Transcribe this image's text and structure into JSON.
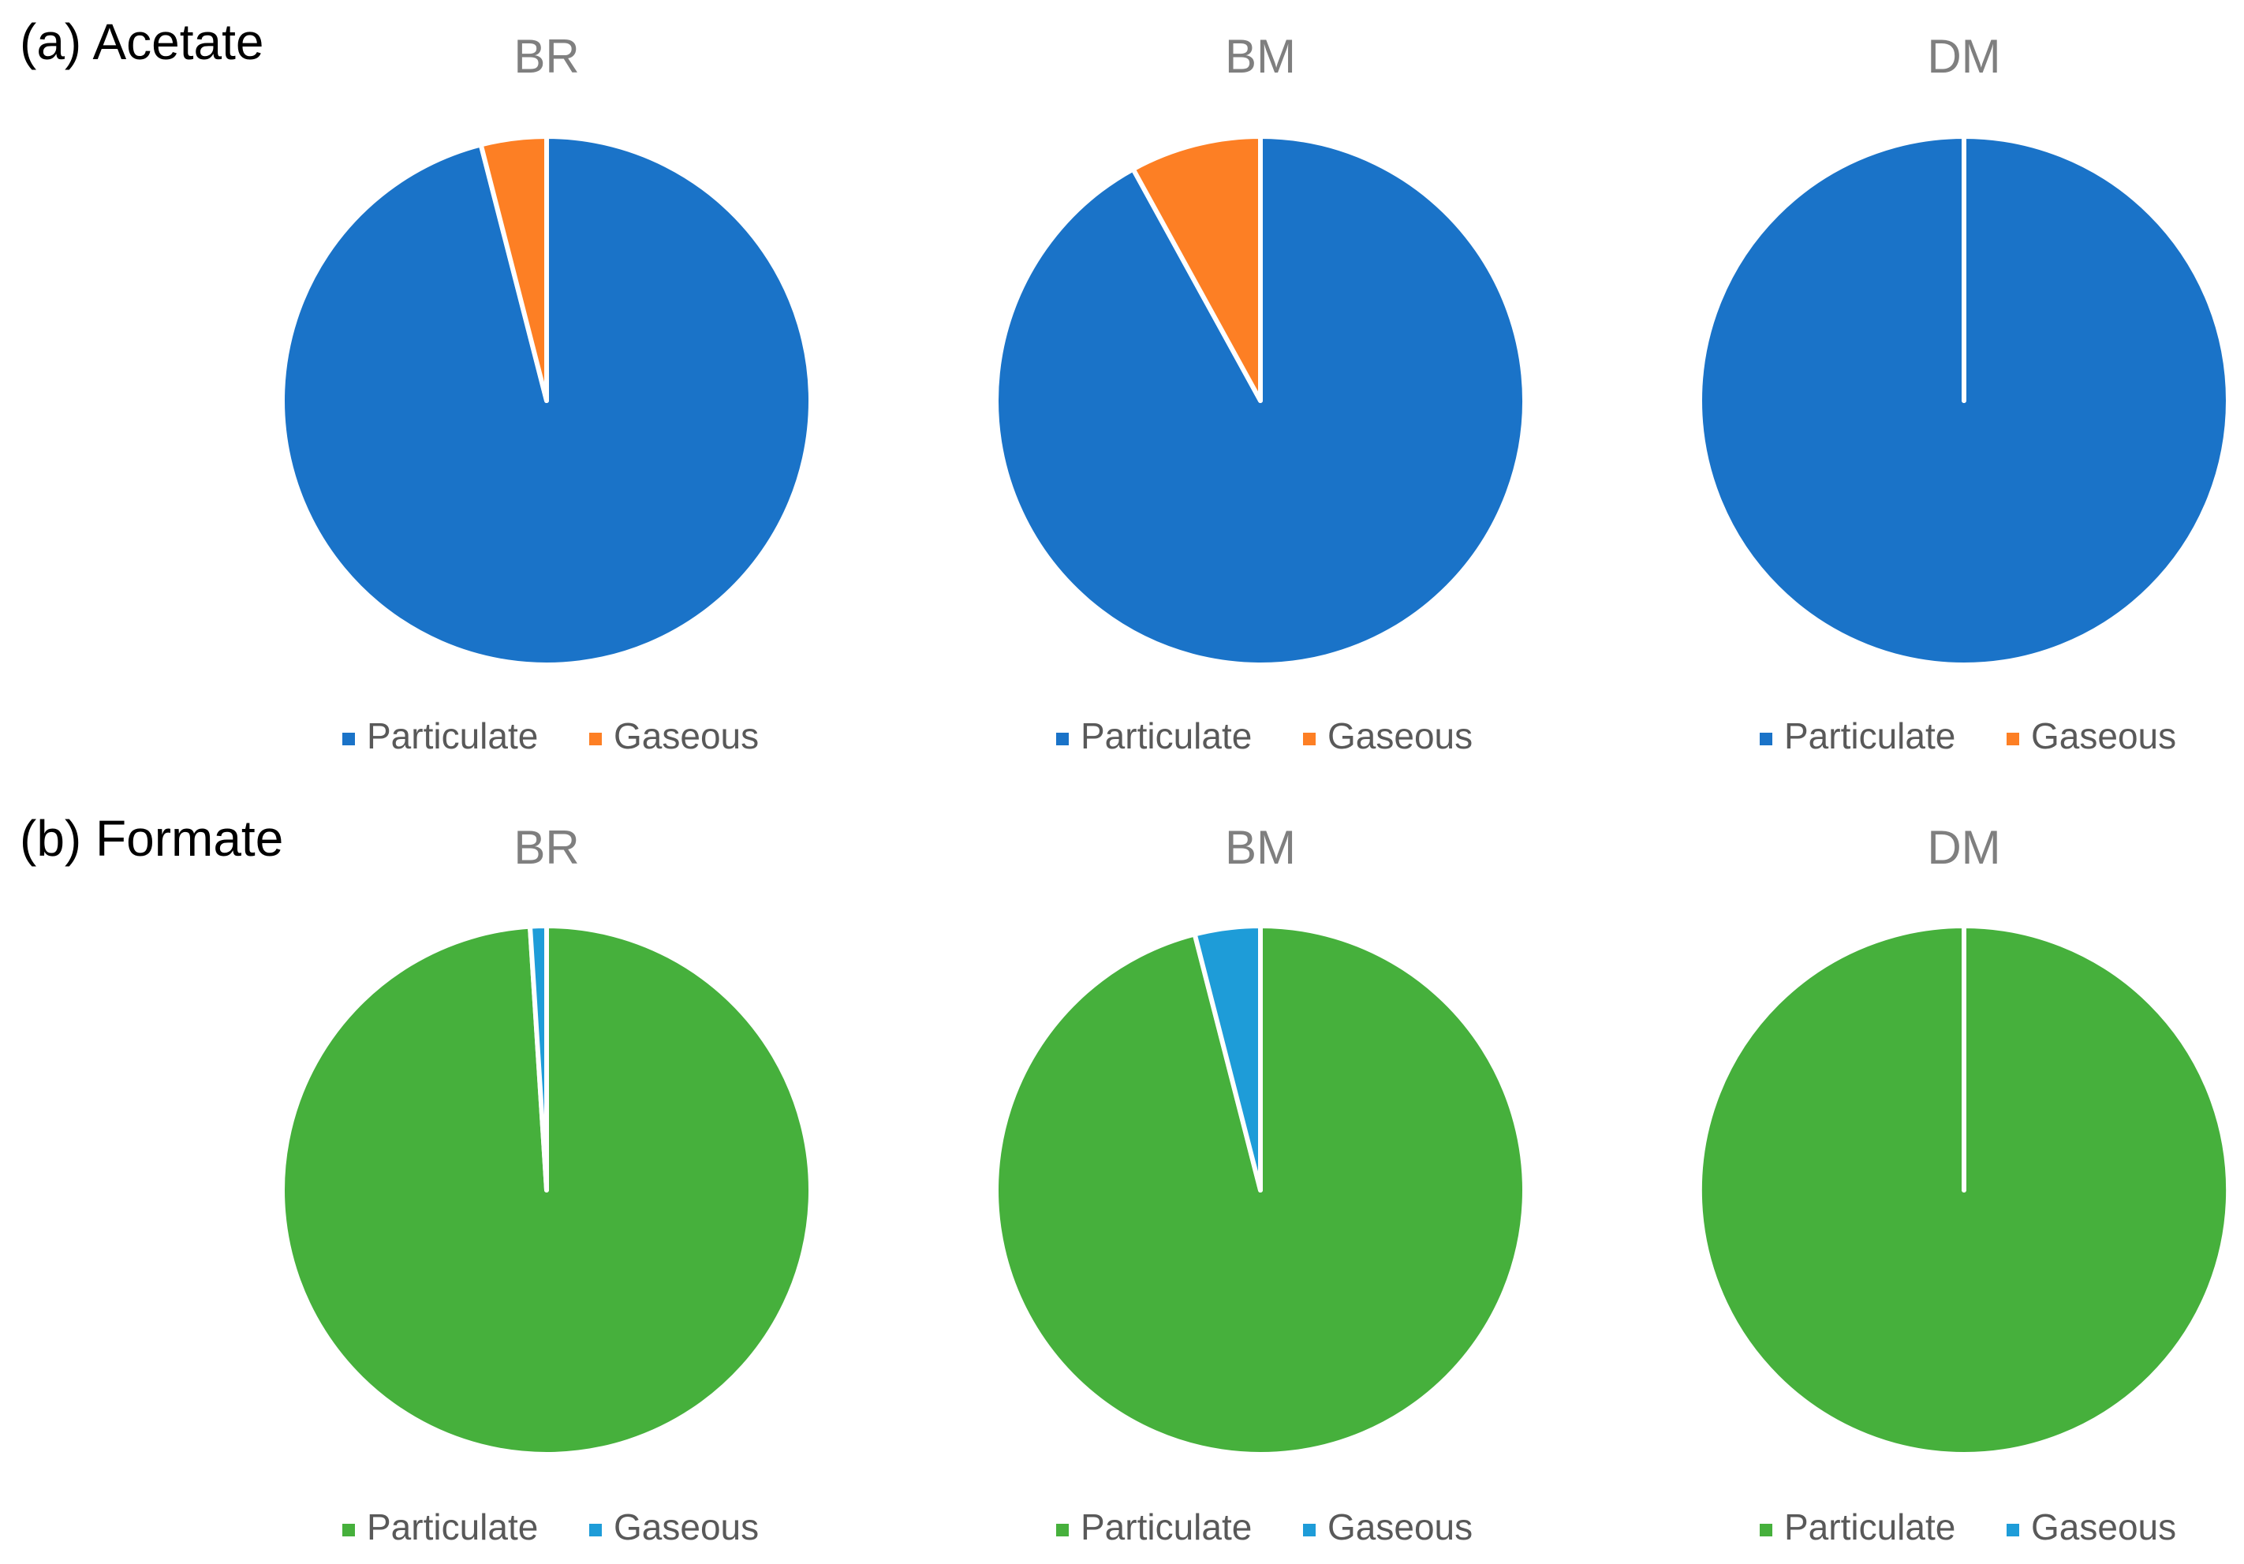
{
  "panel_labels": [
    "(a) Acetate",
    "(b) Formate"
  ],
  "chart_data": [
    {
      "type": "pie",
      "title": "BR",
      "categories": [
        "Particulate",
        "Gaseous"
      ],
      "values": [
        96,
        4
      ],
      "colors": [
        "#1a73c8",
        "#fd7f24"
      ]
    },
    {
      "type": "pie",
      "title": "BM",
      "categories": [
        "Particulate",
        "Gaseous"
      ],
      "values": [
        92,
        8
      ],
      "colors": [
        "#1a73c8",
        "#fd7f24"
      ]
    },
    {
      "type": "pie",
      "title": "DM",
      "categories": [
        "Particulate",
        "Gaseous"
      ],
      "values": [
        100,
        0
      ],
      "colors": [
        "#1a73c8",
        "#fd7f24"
      ]
    },
    {
      "type": "pie",
      "title": "BR",
      "categories": [
        "Particulate",
        "Gaseous"
      ],
      "values": [
        99,
        1
      ],
      "colors": [
        "#46b03c",
        "#1e9cd8"
      ]
    },
    {
      "type": "pie",
      "title": "BM",
      "categories": [
        "Particulate",
        "Gaseous"
      ],
      "values": [
        96,
        4
      ],
      "colors": [
        "#46b03c",
        "#1e9cd8"
      ]
    },
    {
      "type": "pie",
      "title": "DM",
      "categories": [
        "Particulate",
        "Gaseous"
      ],
      "values": [
        100,
        0
      ],
      "colors": [
        "#46b03c",
        "#1e9cd8"
      ]
    }
  ]
}
